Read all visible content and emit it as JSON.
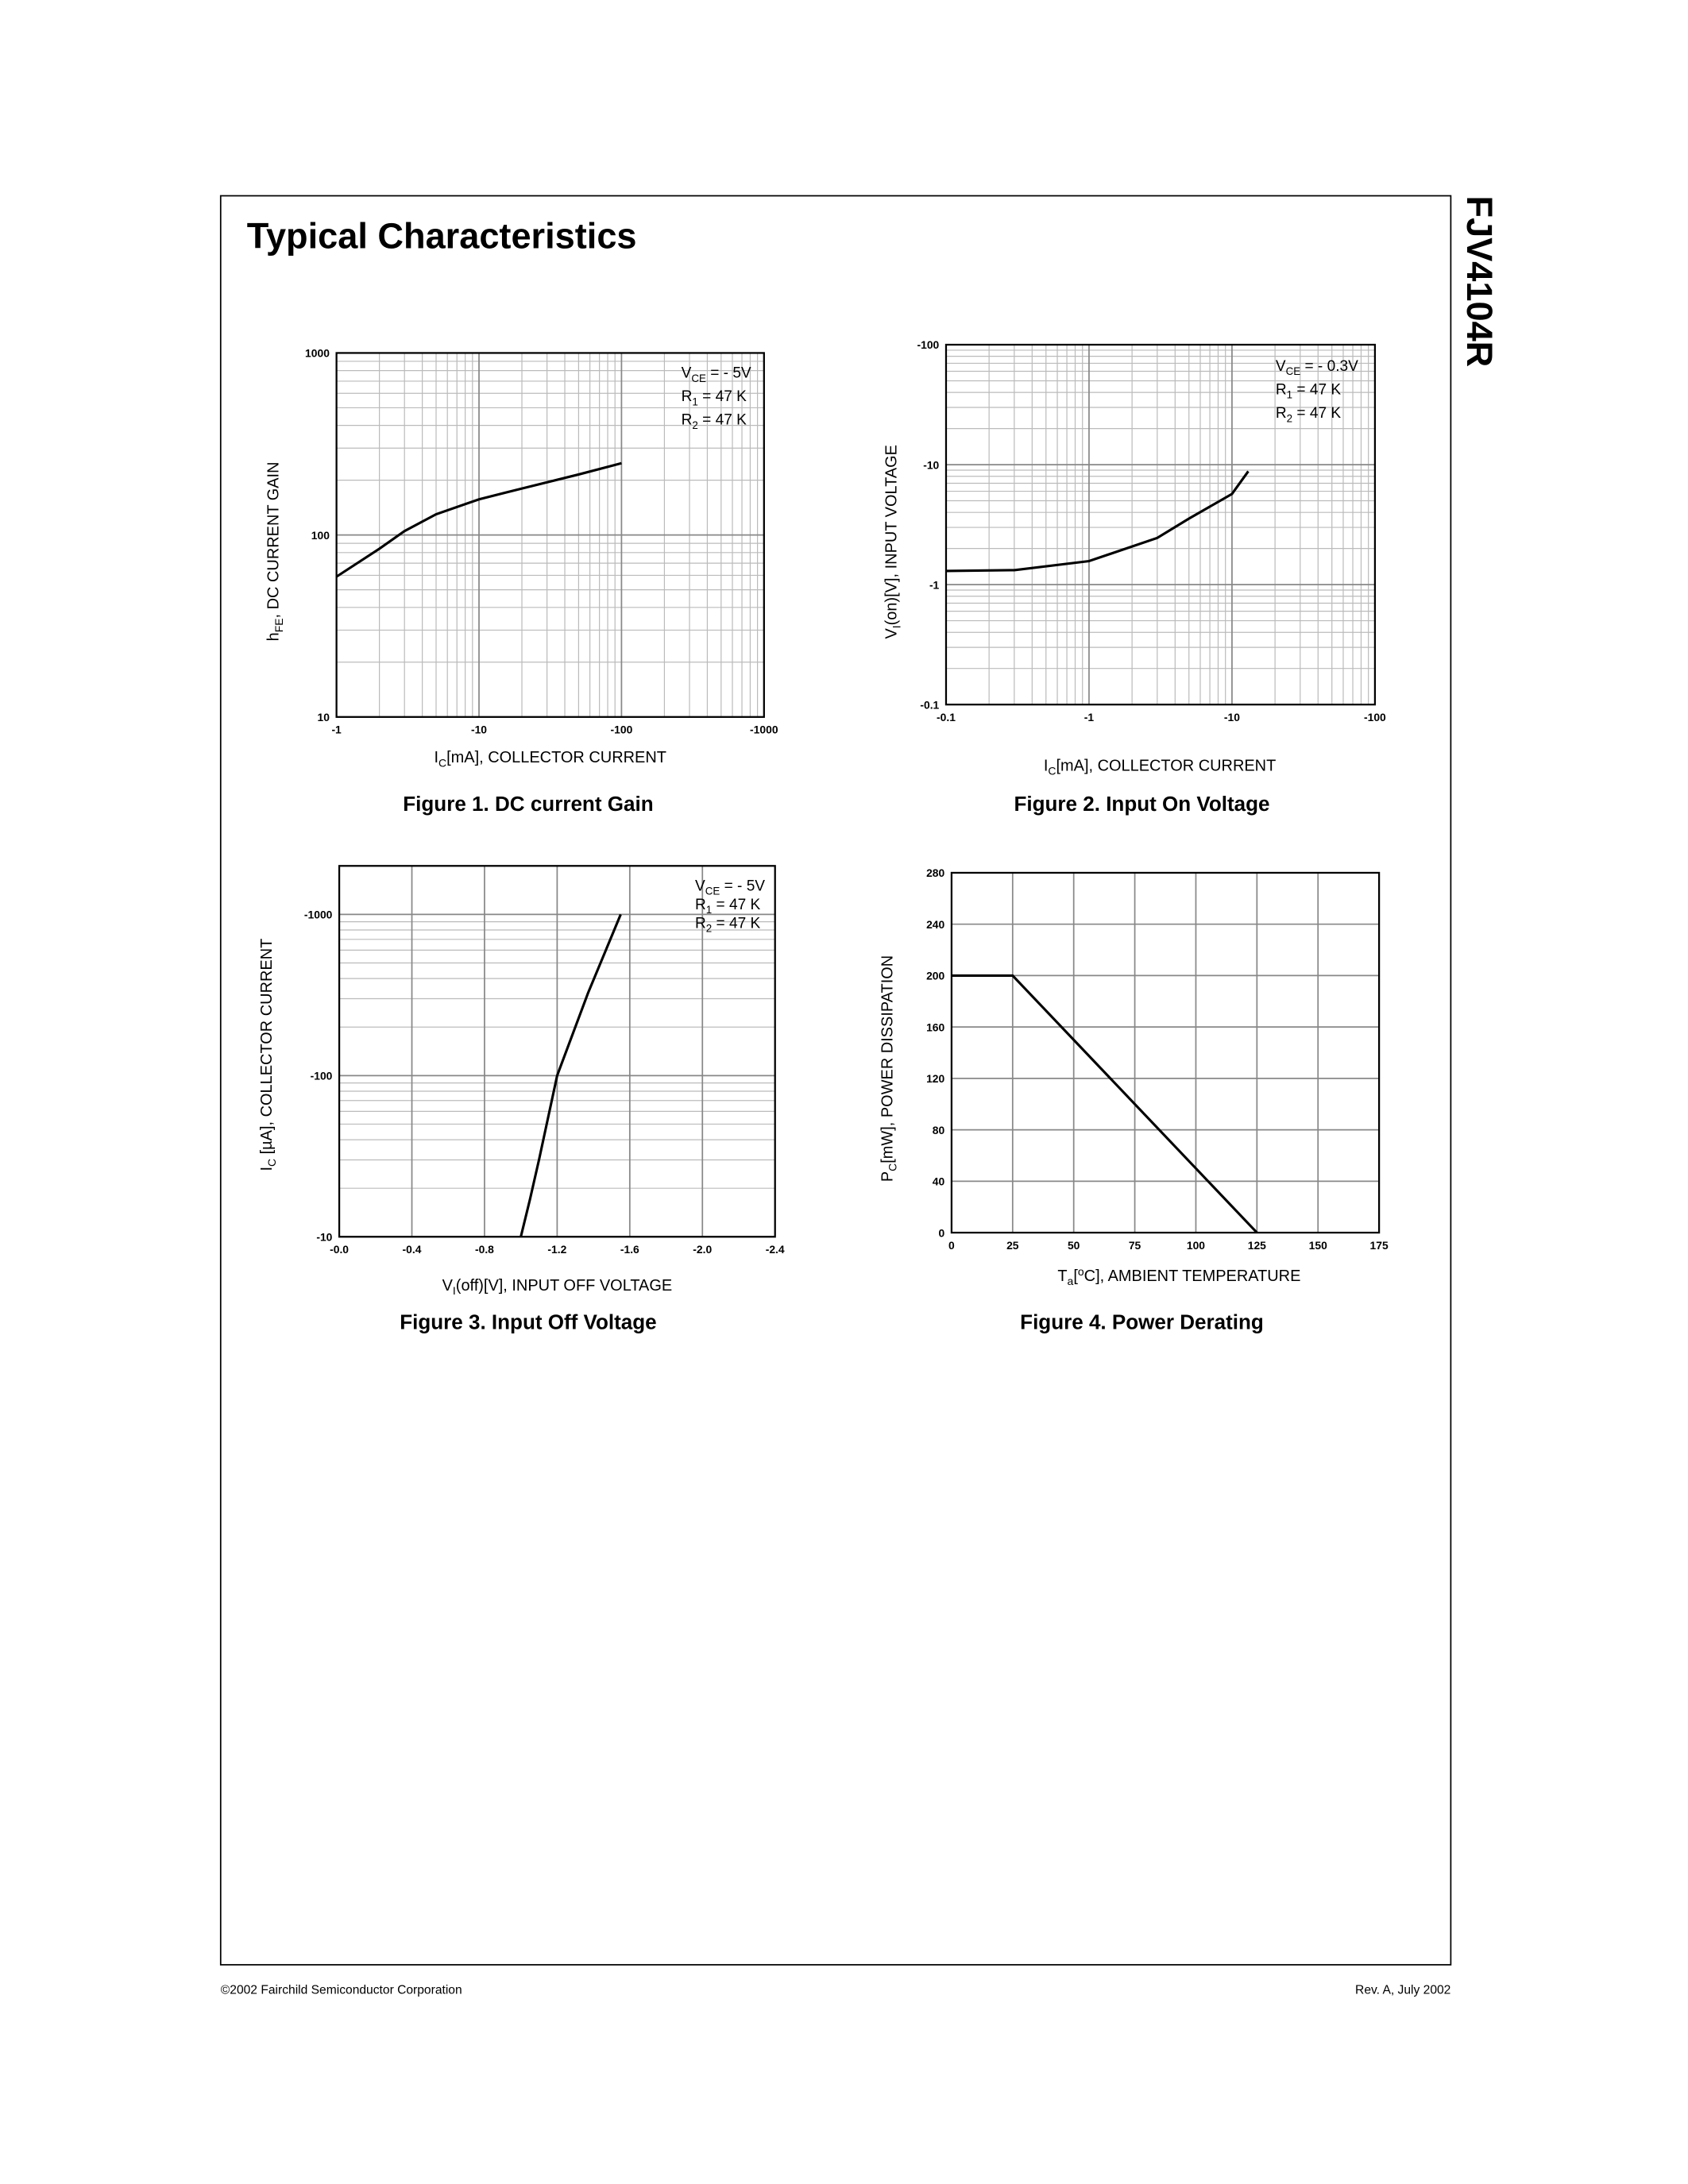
{
  "header": {
    "title": "Typical Characteristics",
    "side_title": "FJV4104R"
  },
  "footer": {
    "left": "©2002 Fairchild Semiconductor Corporation",
    "right": "Rev. A, July 2002"
  },
  "chart_data": [
    {
      "type": "line",
      "caption": "Figure 1. DC current Gain",
      "xscale": "log",
      "yscale": "log",
      "grid": true,
      "color": "#000000",
      "xlabel": [
        {
          "text": "I"
        },
        {
          "text": "C",
          "sub": true
        },
        {
          "text": "[mA], COLLECTOR CURRENT"
        }
      ],
      "ylabel": [
        {
          "text": "h"
        },
        {
          "text": "FE",
          "sub": true
        },
        {
          "text": ", DC CURRENT GAIN"
        }
      ],
      "annotations": [
        [
          {
            "text": "V"
          },
          {
            "text": "CE",
            "sub": true
          },
          {
            "text": " = - 5V"
          }
        ],
        [
          {
            "text": "R"
          },
          {
            "text": "1",
            "sub": true
          },
          {
            "text": " = 47 K"
          }
        ],
        [
          {
            "text": "R"
          },
          {
            "text": "2",
            "sub": true
          },
          {
            "text": " = 47 K"
          }
        ]
      ],
      "xlim": [
        -1,
        -1000
      ],
      "xticks": [
        -1,
        -10,
        -100,
        -1000
      ],
      "ylim": [
        10,
        1000
      ],
      "yticks": [
        10,
        100,
        1000
      ],
      "x": [
        -1,
        -2,
        -3,
        -5,
        -10,
        -20,
        -50,
        -100
      ],
      "values": [
        59,
        84,
        105,
        130,
        157,
        180,
        215,
        248
      ]
    },
    {
      "type": "line",
      "caption": "Figure 2. Input On Voltage",
      "xscale": "log",
      "yscale": "log",
      "grid": true,
      "color": "#000000",
      "xlabel": [
        {
          "text": "I"
        },
        {
          "text": "C",
          "sub": true
        },
        {
          "text": "[mA], COLLECTOR CURRENT"
        }
      ],
      "ylabel": [
        {
          "text": "V"
        },
        {
          "text": "I",
          "sub": true
        },
        {
          "text": "(on)[V], INPUT VOLTAGE"
        }
      ],
      "annotations": [
        [
          {
            "text": "V"
          },
          {
            "text": "CE",
            "sub": true
          },
          {
            "text": " = - 0.3V"
          }
        ],
        [
          {
            "text": "R"
          },
          {
            "text": "1",
            "sub": true
          },
          {
            "text": " = 47 K"
          }
        ],
        [
          {
            "text": "R"
          },
          {
            "text": "2",
            "sub": true
          },
          {
            "text": " = 47 K"
          }
        ]
      ],
      "xlim": [
        -0.1,
        -100
      ],
      "xticks": [
        -0.1,
        -1,
        -10,
        -100
      ],
      "ylim": [
        -0.1,
        -100
      ],
      "yticks": [
        -0.1,
        -1,
        -10,
        -100
      ],
      "x": [
        -0.1,
        -0.3,
        -1,
        -3,
        -5,
        -10,
        -13
      ],
      "values": [
        -1.3,
        -1.32,
        -1.57,
        -2.45,
        -3.55,
        -5.7,
        -8.8
      ]
    },
    {
      "type": "line",
      "caption": "Figure 3. Input Off Voltage",
      "xscale": "linear",
      "yscale": "log",
      "grid": true,
      "color": "#000000",
      "xlabel": [
        {
          "text": "V"
        },
        {
          "text": "I",
          "sub": true
        },
        {
          "text": "(off)[V], INPUT OFF VOLTAGE"
        }
      ],
      "ylabel": [
        {
          "text": "I"
        },
        {
          "text": "C",
          "sub": true
        },
        {
          "text": " [µA], COLLECTOR CURRENT"
        }
      ],
      "annotations": [
        [
          {
            "text": "V"
          },
          {
            "text": "CE",
            "sub": true
          },
          {
            "text": " = - 5V"
          }
        ],
        [
          {
            "text": "R"
          },
          {
            "text": "1",
            "sub": true
          },
          {
            "text": " = 47 K"
          }
        ],
        [
          {
            "text": "R"
          },
          {
            "text": "2",
            "sub": true
          },
          {
            "text": " = 47 K"
          }
        ]
      ],
      "xlim": [
        0,
        -2.4
      ],
      "xticks": [
        {
          "value": 0,
          "label": "-0.0"
        },
        -0.4,
        -0.8,
        -1.2,
        -1.6,
        {
          "value": -2,
          "label": "-2.0"
        },
        -2.4
      ],
      "ylim": [
        -10,
        -2000
      ],
      "yticks": [
        -10,
        -100,
        -1000
      ],
      "x": [
        -1.0,
        -1.05,
        -1.1,
        -1.2,
        -1.37,
        -1.55
      ],
      "values": [
        -10,
        -17,
        -30,
        -100,
        -325,
        -1000
      ]
    },
    {
      "type": "line",
      "caption": "Figure 4. Power Derating",
      "xscale": "linear",
      "yscale": "linear",
      "grid": true,
      "color": "#000000",
      "xlabel": [
        {
          "text": "T"
        },
        {
          "text": "a",
          "sub": true
        },
        {
          "text": "["
        },
        {
          "text": "o",
          "sup": true
        },
        {
          "text": "C], AMBIENT TEMPERATURE"
        }
      ],
      "ylabel": [
        {
          "text": "P"
        },
        {
          "text": "C",
          "sub": true
        },
        {
          "text": "[mW], POWER DISSIPATION"
        }
      ],
      "annotations": [],
      "xlim": [
        0,
        175
      ],
      "xticks": [
        0,
        25,
        50,
        75,
        100,
        125,
        150,
        175
      ],
      "ylim": [
        0,
        280
      ],
      "yticks": [
        0,
        40,
        80,
        120,
        160,
        200,
        240,
        280
      ],
      "x": [
        0,
        25,
        125
      ],
      "values": [
        200,
        200,
        0
      ]
    }
  ]
}
